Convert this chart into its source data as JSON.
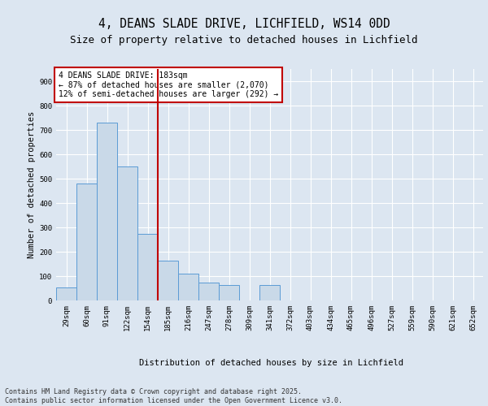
{
  "title": "4, DEANS SLADE DRIVE, LICHFIELD, WS14 0DD",
  "subtitle": "Size of property relative to detached houses in Lichfield",
  "xlabel": "Distribution of detached houses by size in Lichfield",
  "ylabel": "Number of detached properties",
  "categories": [
    "29sqm",
    "60sqm",
    "91sqm",
    "122sqm",
    "154sqm",
    "185sqm",
    "216sqm",
    "247sqm",
    "278sqm",
    "309sqm",
    "341sqm",
    "372sqm",
    "403sqm",
    "434sqm",
    "465sqm",
    "496sqm",
    "527sqm",
    "559sqm",
    "590sqm",
    "621sqm",
    "652sqm"
  ],
  "values": [
    55,
    480,
    730,
    550,
    275,
    165,
    110,
    75,
    65,
    0,
    65,
    0,
    0,
    0,
    0,
    0,
    0,
    0,
    0,
    0,
    0
  ],
  "bar_color": "#c9d9e8",
  "bar_edge_color": "#5b9bd5",
  "highlight_line_color": "#c00000",
  "background_color": "#dce6f1",
  "plot_bg_color": "#dce6f1",
  "annotation_text": "4 DEANS SLADE DRIVE: 183sqm\n← 87% of detached houses are smaller (2,070)\n12% of semi-detached houses are larger (292) →",
  "annotation_box_color": "#c00000",
  "ylim": [
    0,
    950
  ],
  "yticks": [
    0,
    100,
    200,
    300,
    400,
    500,
    600,
    700,
    800,
    900
  ],
  "footer_text": "Contains HM Land Registry data © Crown copyright and database right 2025.\nContains public sector information licensed under the Open Government Licence v3.0.",
  "title_fontsize": 10.5,
  "subtitle_fontsize": 9,
  "axis_label_fontsize": 7.5,
  "tick_fontsize": 6.5,
  "annotation_fontsize": 7,
  "footer_fontsize": 6
}
